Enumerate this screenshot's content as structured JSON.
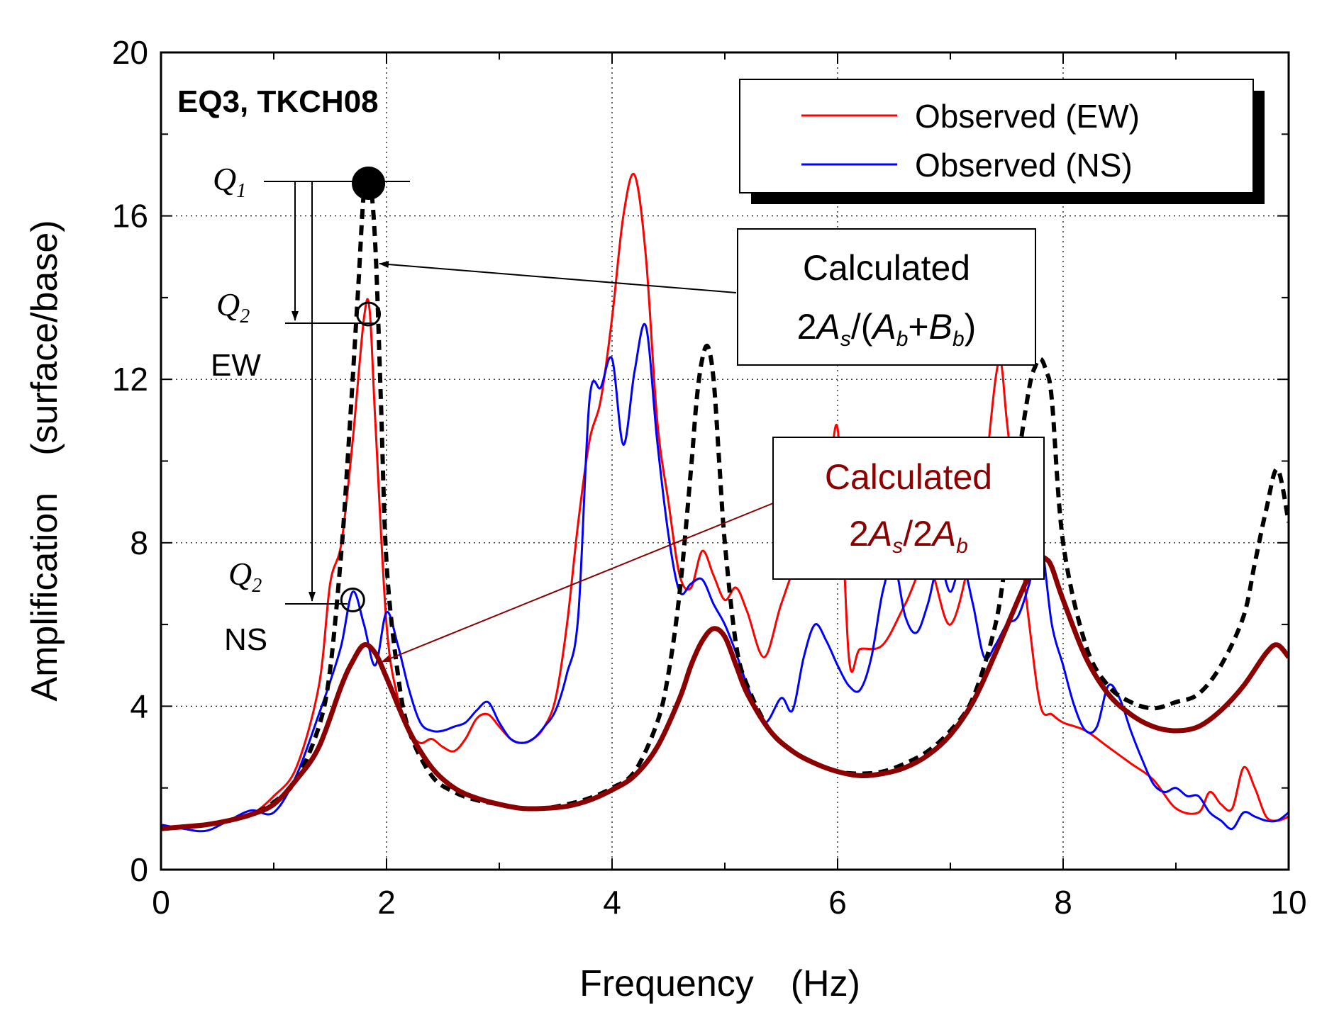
{
  "chart_data": {
    "type": "line",
    "title": "EQ3, TKCH08",
    "xlabel": "Frequency　(Hz)",
    "ylabel": "Amplification　(surface/base)",
    "xlim": [
      0,
      10
    ],
    "ylim": [
      0,
      20
    ],
    "xticks": [
      0,
      2,
      4,
      6,
      8,
      10
    ],
    "yticks": [
      0,
      4,
      8,
      12,
      16,
      20
    ],
    "grid": true,
    "legend_position": "top-right",
    "series": [
      {
        "name": "Observed (EW)",
        "color": "#ff0000",
        "style": "solid",
        "x": [
          0,
          0.2,
          0.4,
          0.6,
          0.8,
          1.0,
          1.2,
          1.4,
          1.5,
          1.6,
          1.7,
          1.8,
          1.85,
          1.9,
          2.0,
          2.1,
          2.2,
          2.3,
          2.4,
          2.5,
          2.6,
          2.7,
          2.8,
          2.9,
          3.0,
          3.1,
          3.2,
          3.3,
          3.4,
          3.5,
          3.6,
          3.7,
          3.8,
          3.9,
          4.0,
          4.1,
          4.2,
          4.3,
          4.4,
          4.5,
          4.6,
          4.7,
          4.8,
          4.9,
          5.0,
          5.1,
          5.2,
          5.35,
          5.5,
          5.65,
          5.8,
          5.9,
          6.0,
          6.1,
          6.2,
          6.4,
          6.6,
          6.8,
          7.0,
          7.2,
          7.3,
          7.4,
          7.45,
          7.5,
          7.6,
          7.7,
          7.8,
          7.9,
          8.0,
          8.2,
          8.4,
          8.6,
          8.8,
          9.0,
          9.2,
          9.3,
          9.4,
          9.5,
          9.6,
          9.7,
          9.8,
          9.9,
          10.0
        ],
        "values": [
          1.0,
          1.05,
          1.1,
          1.2,
          1.35,
          1.8,
          2.5,
          4.5,
          7.0,
          8.0,
          10.5,
          13.5,
          13.7,
          11.0,
          6.0,
          4.2,
          3.4,
          3.1,
          3.2,
          3.0,
          2.9,
          3.2,
          3.7,
          3.8,
          3.5,
          3.2,
          3.1,
          3.2,
          3.5,
          4.2,
          6.0,
          8.5,
          10.5,
          11.5,
          13.5,
          16.0,
          17.0,
          15.0,
          11.0,
          9.0,
          7.2,
          6.9,
          7.8,
          7.2,
          6.6,
          6.9,
          6.3,
          5.2,
          6.5,
          7.5,
          7.2,
          8.5,
          10.8,
          5.2,
          5.4,
          5.5,
          6.5,
          7.5,
          6.0,
          8.0,
          9.5,
          12.0,
          12.4,
          11.0,
          8.5,
          6.0,
          4.0,
          3.8,
          3.6,
          3.4,
          3.0,
          2.6,
          2.2,
          1.5,
          1.4,
          1.9,
          1.6,
          1.5,
          2.5,
          2.0,
          1.3,
          1.2,
          1.3
        ]
      },
      {
        "name": "Observed (NS)",
        "color": "#0000ff",
        "style": "solid",
        "x": [
          0,
          0.2,
          0.4,
          0.6,
          0.8,
          1.0,
          1.2,
          1.4,
          1.5,
          1.6,
          1.7,
          1.8,
          1.9,
          2.0,
          2.1,
          2.2,
          2.3,
          2.4,
          2.5,
          2.6,
          2.7,
          2.8,
          2.9,
          3.0,
          3.1,
          3.2,
          3.3,
          3.4,
          3.5,
          3.6,
          3.7,
          3.8,
          3.9,
          4.0,
          4.1,
          4.2,
          4.3,
          4.4,
          4.5,
          4.6,
          4.7,
          4.8,
          4.9,
          5.0,
          5.1,
          5.2,
          5.35,
          5.5,
          5.6,
          5.7,
          5.8,
          5.9,
          6.0,
          6.1,
          6.2,
          6.3,
          6.4,
          6.5,
          6.6,
          6.7,
          6.8,
          6.9,
          7.0,
          7.1,
          7.2,
          7.3,
          7.4,
          7.5,
          7.6,
          7.7,
          7.8,
          7.9,
          8.0,
          8.1,
          8.2,
          8.3,
          8.4,
          8.5,
          8.6,
          8.7,
          8.8,
          8.9,
          9.0,
          9.1,
          9.2,
          9.3,
          9.4,
          9.5,
          9.6,
          9.7,
          9.8,
          9.9,
          10.0
        ],
        "values": [
          1.1,
          1.0,
          0.95,
          1.2,
          1.45,
          1.4,
          2.3,
          3.8,
          4.6,
          5.5,
          6.8,
          6.0,
          5.0,
          6.3,
          5.5,
          4.4,
          3.6,
          3.4,
          3.4,
          3.5,
          3.6,
          3.9,
          4.1,
          3.6,
          3.2,
          3.1,
          3.2,
          3.5,
          3.9,
          4.8,
          6.2,
          11.5,
          11.8,
          12.5,
          10.4,
          12.2,
          13.3,
          10.5,
          8.2,
          6.8,
          7.0,
          7.1,
          6.5,
          6.0,
          5.3,
          4.5,
          3.6,
          4.2,
          3.9,
          5.2,
          6.0,
          5.6,
          5.0,
          4.5,
          4.4,
          5.2,
          6.8,
          7.5,
          6.2,
          5.8,
          6.5,
          7.5,
          6.8,
          7.5,
          6.5,
          5.2,
          5.5,
          6.0,
          6.2,
          7.0,
          8.0,
          6.0,
          5.0,
          4.0,
          3.4,
          3.5,
          4.5,
          4.2,
          3.4,
          2.7,
          2.1,
          1.9,
          2.0,
          1.8,
          1.8,
          1.4,
          1.2,
          1.0,
          1.4,
          1.3,
          1.2,
          1.2,
          1.4
        ]
      },
      {
        "name": "Calculated 2As/(Ab+Bb)",
        "color": "#000000",
        "style": "dashed",
        "x": [
          0,
          0.2,
          0.4,
          0.6,
          0.8,
          1.0,
          1.2,
          1.4,
          1.5,
          1.6,
          1.65,
          1.7,
          1.75,
          1.8,
          1.85,
          1.9,
          1.95,
          2.0,
          2.1,
          2.2,
          2.4,
          2.6,
          2.8,
          3.0,
          3.2,
          3.4,
          3.6,
          3.8,
          4.0,
          4.2,
          4.4,
          4.5,
          4.6,
          4.7,
          4.75,
          4.8,
          4.85,
          4.9,
          4.95,
          5.0,
          5.1,
          5.2,
          5.4,
          5.6,
          5.8,
          6.0,
          6.2,
          6.4,
          6.6,
          6.8,
          7.0,
          7.2,
          7.4,
          7.5,
          7.6,
          7.7,
          7.75,
          7.8,
          7.85,
          7.9,
          8.0,
          8.2,
          8.4,
          8.6,
          8.8,
          9.0,
          9.2,
          9.4,
          9.6,
          9.7,
          9.8,
          9.9,
          10.0
        ],
        "values": [
          1.0,
          1.05,
          1.1,
          1.2,
          1.35,
          1.65,
          2.2,
          3.5,
          4.9,
          7.8,
          9.8,
          12.0,
          14.3,
          16.6,
          16.9,
          15.3,
          11.5,
          7.5,
          4.8,
          3.4,
          2.3,
          1.9,
          1.7,
          1.6,
          1.5,
          1.5,
          1.6,
          1.75,
          2.0,
          2.4,
          3.6,
          4.8,
          6.8,
          9.8,
          11.5,
          12.5,
          12.8,
          12.0,
          10.0,
          8.0,
          5.5,
          4.5,
          3.4,
          2.9,
          2.6,
          2.4,
          2.35,
          2.4,
          2.6,
          2.9,
          3.4,
          4.2,
          6.0,
          7.8,
          10.0,
          11.8,
          12.3,
          12.5,
          12.2,
          11.5,
          8.0,
          5.5,
          4.5,
          4.1,
          3.95,
          4.1,
          4.3,
          5.0,
          6.2,
          7.5,
          8.8,
          9.8,
          8.5
        ]
      },
      {
        "name": "Calculated 2As/2Ab",
        "color": "#8b0000",
        "style": "solid-thick",
        "x": [
          0,
          0.2,
          0.4,
          0.6,
          0.8,
          1.0,
          1.2,
          1.4,
          1.6,
          1.7,
          1.8,
          1.9,
          2.0,
          2.2,
          2.4,
          2.6,
          2.8,
          3.0,
          3.2,
          3.4,
          3.6,
          3.8,
          4.0,
          4.2,
          4.4,
          4.6,
          4.7,
          4.8,
          4.9,
          5.0,
          5.1,
          5.2,
          5.4,
          5.6,
          5.8,
          6.0,
          6.2,
          6.4,
          6.6,
          6.8,
          7.0,
          7.2,
          7.4,
          7.6,
          7.7,
          7.8,
          7.85,
          7.9,
          8.0,
          8.2,
          8.4,
          8.6,
          8.8,
          9.0,
          9.2,
          9.4,
          9.6,
          9.8,
          9.9,
          10.0
        ],
        "values": [
          1.0,
          1.05,
          1.1,
          1.2,
          1.35,
          1.6,
          2.2,
          3.0,
          4.5,
          5.1,
          5.5,
          5.3,
          4.7,
          3.4,
          2.5,
          2.0,
          1.75,
          1.6,
          1.5,
          1.5,
          1.55,
          1.7,
          1.95,
          2.3,
          3.0,
          4.2,
          5.0,
          5.6,
          5.9,
          5.7,
          5.0,
          4.3,
          3.4,
          2.9,
          2.6,
          2.4,
          2.3,
          2.35,
          2.5,
          2.8,
          3.3,
          4.1,
          5.3,
          6.6,
          7.2,
          7.6,
          7.6,
          7.4,
          6.6,
          5.2,
          4.3,
          3.8,
          3.5,
          3.4,
          3.5,
          3.9,
          4.5,
          5.3,
          5.5,
          5.2
        ]
      }
    ],
    "markers": [
      {
        "label": "Q1",
        "x": 1.84,
        "y": 16.8,
        "style": "filled-circle"
      },
      {
        "label": "Q2 EW",
        "x": 1.84,
        "y": 13.6,
        "style": "open-circle"
      },
      {
        "label": "Q2 NS",
        "x": 1.7,
        "y": 6.6,
        "style": "open-circle"
      }
    ]
  },
  "legend": {
    "items": [
      {
        "label": "Observed (EW)",
        "color": "#ff0000"
      },
      {
        "label": "Observed (NS)",
        "color": "#0000ff"
      }
    ]
  },
  "annotations": {
    "q1": {
      "letter": "Q",
      "sub": "1"
    },
    "q2_ew": {
      "letter": "Q",
      "sub": "2",
      "tag": "EW"
    },
    "q2_ns": {
      "letter": "Q",
      "sub": "2",
      "tag": "NS"
    },
    "calc_black": {
      "line1": "Calculated",
      "expr": {
        "c2": "2",
        "A": "A",
        "s": "s",
        "slash_paren": "/(",
        "b": "b",
        "plus": "+",
        "B": "B",
        "close": ")"
      },
      "color": "#000000"
    },
    "calc_red": {
      "line1": "Calculated",
      "expr": {
        "c2": "2",
        "A": "A",
        "s": "s",
        "slash2": "/2",
        "b": "b"
      },
      "color": "#8b0000"
    }
  }
}
